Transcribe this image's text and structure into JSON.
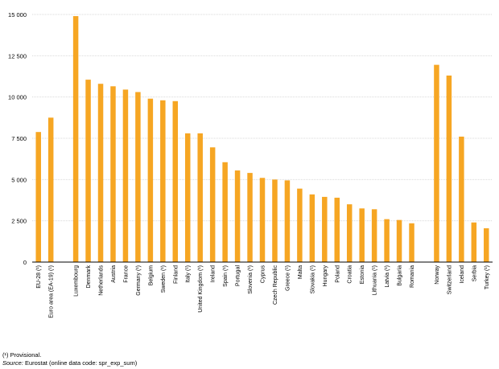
{
  "chart_data": {
    "type": "bar",
    "title": "",
    "xlabel": "",
    "ylabel": "",
    "ylim": [
      0,
      15000
    ],
    "yticks": [
      0,
      2500,
      5000,
      7500,
      10000,
      12500,
      15000
    ],
    "ytick_labels": [
      "0",
      "2 500",
      "5 000",
      "7 500",
      "10 000",
      "12 500",
      "15 000"
    ],
    "grid": true,
    "bar_color": "#F6A623",
    "groups": [
      {
        "categories": [
          "EU-28 (¹)",
          "Euro area (EA-19) (¹)"
        ],
        "values": [
          7880,
          8750
        ]
      },
      {
        "categories": [
          "Luxembourg",
          "Denmark",
          "Netherlands",
          "Austria",
          "France",
          "Germany (¹)",
          "Belgium",
          "Sweden (¹)",
          "Finland",
          "Italy (¹)",
          "United Kingdom (¹)",
          "Ireland",
          "Spain (¹)",
          "Portugal",
          "Slovenia (¹)",
          "Cyprus",
          "Czech Republic",
          "Greece (¹)",
          "Malta",
          "Slovakia (¹)",
          "Hungary",
          "Poland",
          "Croatia",
          "Estonia",
          "Lithuania (¹)",
          "Latvia (¹)",
          "Bulgaria",
          "Romania"
        ],
        "values": [
          14900,
          11050,
          10800,
          10650,
          10450,
          10300,
          9900,
          9800,
          9750,
          7800,
          7800,
          6950,
          6050,
          5550,
          5400,
          5100,
          5000,
          4950,
          4450,
          4100,
          3950,
          3900,
          3500,
          3250,
          3200,
          2600,
          2550,
          2350
        ]
      },
      {
        "categories": [
          "Norway",
          "Switzerland",
          "Iceland",
          "Serbia",
          "Turkey (¹)"
        ],
        "values": [
          11950,
          11300,
          7600,
          2400,
          2050
        ]
      }
    ]
  },
  "footnotes": {
    "provisional": "(¹) Provisional.",
    "source_label": "Source:",
    "source_text": " Eurostat (online data code: spr_exp_sum)"
  }
}
